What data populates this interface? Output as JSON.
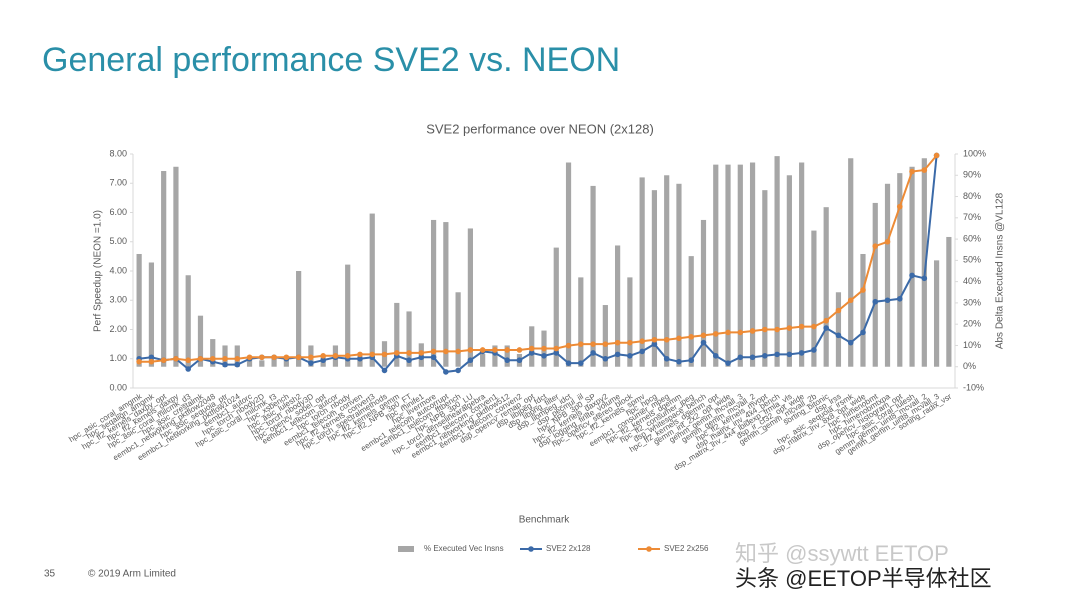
{
  "slide_title": "General performance SVE2 vs. NEON",
  "footer": {
    "page": "35",
    "copyright": "© 2019 Arm Limited"
  },
  "watermarks": [
    "知乎 @ssywtt EETOP",
    "头条 @EETOP半导体社区"
  ],
  "chart_data": {
    "type": "bar_line",
    "title": "SVE2 performance over NEON (2x128)",
    "xlabel": "Benchmark",
    "ylabel": "Perf Speedup (NEON =1.0)",
    "y2label": "Abs Delta Executed Insns @VL128",
    "categories": [
      "hpc_asic_coral_amgmk",
      "hpc_seqalign_amgmk",
      "hpc_ff2_kernels_daxpy_opt",
      "hpc_ff2_kernels_daxpy",
      "hpc_asic_coral_milcmk_d3",
      "hpc_asic_crestalmk",
      "eembc1_networking_pktflow2048",
      "hpc_asic_sequoia_ptr",
      "eembc1_networking_pktflow1024",
      "eembc1_autorc",
      "hpc_torch_nbody2D",
      "hpc_asic_coral_milcmk_f3",
      "hpc_xsbench",
      "hpc_asic_lulesh2",
      "hpc_torch_nbody3D",
      "hpc_opencv_sobel_opt",
      "eembc1_telecom_autcor",
      "hpc_torch_nbody",
      "eembc1_telecom_conven",
      "hpc_ff2_kernels_convert3",
      "hpc_torch_spectralmethods",
      "hpc_ff2_kernels_gemm",
      "hpc_ff2_NPB_3p0_FT",
      "hpc_minife1",
      "hpc_livermore",
      "eembc1_telecom_autcorrupt",
      "eembc1_telecom_fftbench",
      "hpc_NPB_3p0_LU",
      "hpc_torch_denselinearalgebra",
      "eembc1_telecom_conven1",
      "eembc1_networking_pktflow512",
      "eembc1_telecom_conven2",
      "dsp_opencv_remap_opt",
      "dsp_libjpeg_fdct",
      "dsp_libpng_filter",
      "dsp_libmpeg_idct",
      "dsp_pecmul_iil",
      "hpc_NPB_3p0_SP",
      "hpc_ff2_kernels_daxpy2",
      "dsp_logging_finite_volume",
      "hpc_opencv_stereo_block",
      "hpc_ff2_kernels_spmv",
      "hpc_hpcg",
      "eembc1_consumer_mpeg",
      "hpc_ff2_kernels_dgemm",
      "hpc_ff2_consumer_jpeg",
      "dsp_whitespace_bench",
      "hpc_ff2_kernels_dgemm_opt",
      "gemm_int_2x2_opt_wide",
      "gemm_gemm_mcvall_3",
      "gemm_gemm_mcvall_2",
      "hpc_ff2_kernels_mvopt",
      "dsp_matrix_inv_4x4_bench",
      "dsp_matrix_inv_4x4_lbidexp_frmla_vls",
      "dsp_ir_cf32_opt_wide",
      "gemm_gemm_mcvall_2b",
      "sorting_bitonic",
      "dsp_lrss",
      "hpc_asic_sequoia_irsmk",
      "dsp_matrix_inv_8x8_opt_wide",
      "hpc_himenobmt",
      "hpc_himenobmtxpa",
      "dsp_opencv_histogram_opt",
      "hpc_asic_coral_lulesh",
      "gemm_gemm_uint8_mcvall_2",
      "gemm_gemm_uint8_mcvall_3",
      "sorting_radix_vsr"
    ],
    "ylim": [
      0,
      8
    ],
    "yticks": [
      {
        "value": 0,
        "label": "0.00"
      },
      {
        "value": 1,
        "label": "1.00"
      },
      {
        "value": 2,
        "label": "2.00"
      },
      {
        "value": 3,
        "label": "3.00"
      },
      {
        "value": 4,
        "label": "4.00"
      },
      {
        "value": 5,
        "label": "5.00"
      },
      {
        "value": 6,
        "label": "6.00"
      },
      {
        "value": 7,
        "label": "7.00"
      },
      {
        "value": 8,
        "label": "8.00"
      }
    ],
    "y2lim": [
      -10,
      100
    ],
    "y2ticks": [
      {
        "value": -10,
        "label": "-10%"
      },
      {
        "value": 0,
        "label": "0%"
      },
      {
        "value": 10,
        "label": "10%"
      },
      {
        "value": 20,
        "label": "20%"
      },
      {
        "value": 30,
        "label": "30%"
      },
      {
        "value": 40,
        "label": "40%"
      },
      {
        "value": 50,
        "label": "50%"
      },
      {
        "value": 60,
        "label": "60%"
      },
      {
        "value": 70,
        "label": "70%"
      },
      {
        "value": 80,
        "label": "80%"
      },
      {
        "value": 90,
        "label": "90%"
      },
      {
        "value": 100,
        "label": "100%"
      }
    ],
    "series": [
      {
        "name": "% Executed Vec Insns",
        "kind": "bar",
        "axis": "y2",
        "color": "#a6a6a6",
        "values": [
          53,
          49,
          92,
          94,
          43,
          24,
          13,
          10,
          10,
          5,
          3,
          4,
          4,
          45,
          10,
          5,
          10,
          48,
          5,
          72,
          12,
          30,
          26,
          11,
          69,
          68,
          35,
          65,
          6,
          10,
          10,
          6,
          19,
          17,
          56,
          96,
          42,
          85,
          29,
          57,
          42,
          89,
          83,
          90,
          86,
          52,
          69,
          95,
          95,
          95,
          96,
          83,
          99,
          90,
          96,
          64,
          75,
          35,
          98,
          53,
          77,
          86,
          91,
          94,
          98,
          50,
          61
        ]
      },
      {
        "name": "SVE2 2x128",
        "kind": "line",
        "axis": "y",
        "color": "#3b6aa8",
        "values": [
          1.0,
          1.05,
          0.95,
          1.0,
          0.65,
          1.0,
          0.9,
          0.8,
          0.8,
          1.0,
          1.05,
          1.05,
          1.0,
          1.05,
          0.85,
          0.95,
          1.05,
          1.0,
          1.0,
          1.05,
          0.6,
          1.1,
          0.95,
          1.05,
          1.05,
          0.55,
          0.6,
          0.95,
          1.25,
          1.2,
          0.95,
          0.95,
          1.2,
          1.1,
          1.2,
          0.85,
          0.85,
          1.2,
          1.0,
          1.15,
          1.1,
          1.25,
          1.5,
          1.0,
          0.9,
          0.95,
          1.55,
          1.1,
          0.85,
          1.05,
          1.05,
          1.1,
          1.15,
          1.15,
          1.2,
          1.3,
          2.05,
          1.8,
          1.55,
          1.9,
          2.95,
          3.0,
          3.05,
          3.85,
          3.75,
          7.95,
          null
        ]
      },
      {
        "name": "SVE2 2x256",
        "kind": "line",
        "axis": "y",
        "color": "#ed8b36",
        "values": [
          0.9,
          0.9,
          0.95,
          1.0,
          0.95,
          1.0,
          1.0,
          1.0,
          1.0,
          1.05,
          1.05,
          1.05,
          1.05,
          1.05,
          1.05,
          1.1,
          1.1,
          1.1,
          1.15,
          1.15,
          1.15,
          1.2,
          1.2,
          1.2,
          1.25,
          1.25,
          1.25,
          1.3,
          1.3,
          1.3,
          1.3,
          1.3,
          1.35,
          1.35,
          1.35,
          1.45,
          1.5,
          1.5,
          1.5,
          1.55,
          1.55,
          1.6,
          1.65,
          1.65,
          1.7,
          1.75,
          1.8,
          1.85,
          1.9,
          1.9,
          1.95,
          2.0,
          2.0,
          2.05,
          2.1,
          2.1,
          2.3,
          2.65,
          3.0,
          3.35,
          4.85,
          5.0,
          6.2,
          7.4,
          7.45,
          7.95,
          null
        ]
      }
    ],
    "grid": false,
    "legend": "bottom"
  }
}
